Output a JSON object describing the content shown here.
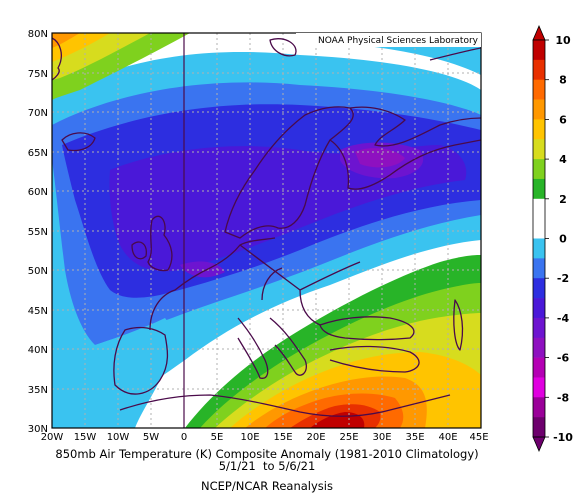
{
  "credit": "NOAA Physical Sciences Laboratory",
  "caption": {
    "line1": "850mb Air Temperature (K) Composite Anomaly (1981-2010 Climatology)",
    "line2": "5/1/21  to 5/6/21",
    "line3": "NCEP/NCAR Reanalysis"
  },
  "map": {
    "lat_labels": [
      "80N",
      "75N",
      "70N",
      "65N",
      "60N",
      "55N",
      "50N",
      "45N",
      "40N",
      "35N",
      "30N"
    ],
    "lon_labels": [
      "20W",
      "15W",
      "10W",
      "5W",
      "0",
      "5E",
      "10E",
      "15E",
      "20E",
      "25E",
      "30E",
      "35E",
      "40E",
      "45E"
    ]
  },
  "colorbar": {
    "labels": [
      "10",
      "8",
      "6",
      "4",
      "2",
      "0",
      "-2",
      "-4",
      "-6",
      "-8",
      "-10"
    ],
    "colors": [
      "#c00000",
      "#e83000",
      "#ff6a00",
      "#ff9800",
      "#ffc400",
      "#d7dc1e",
      "#7fd11e",
      "#28b428",
      "#ffffff",
      "#ffffff",
      "#3ac3f0",
      "#3a74f0",
      "#2d2ee0",
      "#4a18d8",
      "#6d14d0",
      "#8e10c0",
      "#b400b4",
      "#e000e0",
      "#9a0099",
      "#6d006d"
    ]
  },
  "colors": {
    "coast": "#4a0a4a",
    "grid": "#b0b0b0"
  }
}
